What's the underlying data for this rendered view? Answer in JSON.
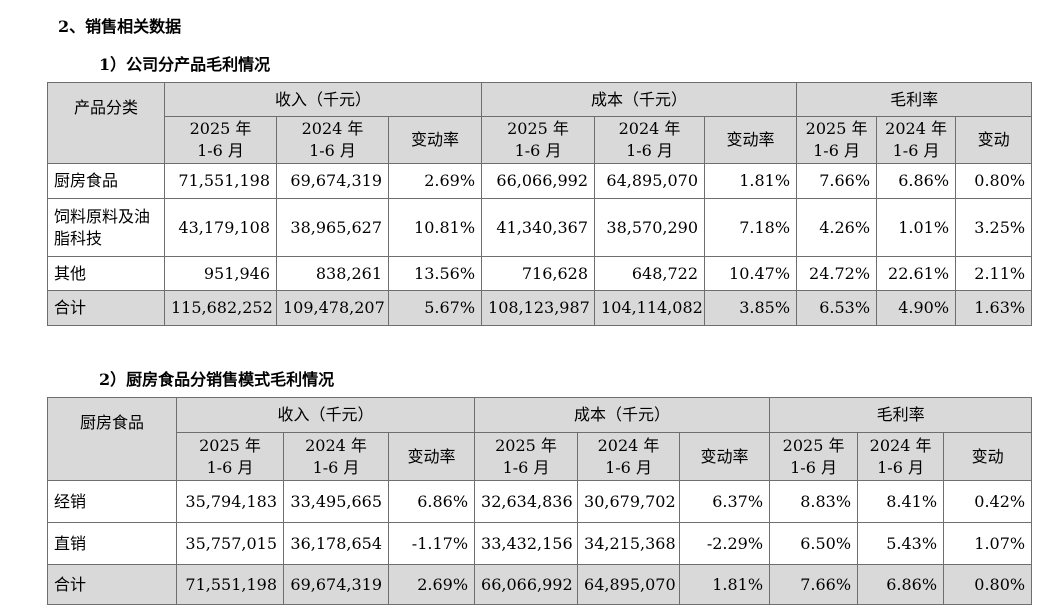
{
  "section_heading": "2、销售相关数据",
  "table1": {
    "caption": "1）公司分产品毛利情况",
    "header": {
      "category": "产品分类",
      "group_revenue": "收入（千元）",
      "group_cost": "成本（千元）",
      "group_margin": "毛利率",
      "y2025": "2025 年",
      "y2024": "2024 年",
      "period": "1-6 月",
      "change_rate": "变动率",
      "change": "变动"
    },
    "rows": [
      {
        "label": "厨房食品",
        "rev25": "71,551,198",
        "rev24": "69,674,319",
        "rev_chg": "2.69%",
        "cost25": "66,066,992",
        "cost24": "64,895,070",
        "cost_chg": "1.81%",
        "gm25": "7.66%",
        "gm24": "6.86%",
        "gm_chg": "0.80%"
      },
      {
        "label": "饲料原料及油脂科技",
        "rev25": "43,179,108",
        "rev24": "38,965,627",
        "rev_chg": "10.81%",
        "cost25": "41,340,367",
        "cost24": "38,570,290",
        "cost_chg": "7.18%",
        "gm25": "4.26%",
        "gm24": "1.01%",
        "gm_chg": "3.25%"
      },
      {
        "label": "其他",
        "rev25": "951,946",
        "rev24": "838,261",
        "rev_chg": "13.56%",
        "cost25": "716,628",
        "cost24": "648,722",
        "cost_chg": "10.47%",
        "gm25": "24.72%",
        "gm24": "22.61%",
        "gm_chg": "2.11%"
      },
      {
        "label": "合计",
        "rev25": "115,682,252",
        "rev24": "109,478,207",
        "rev_chg": "5.67%",
        "cost25": "108,123,987",
        "cost24": "104,114,082",
        "cost_chg": "3.85%",
        "gm25": "6.53%",
        "gm24": "4.90%",
        "gm_chg": "1.63%"
      }
    ]
  },
  "table2": {
    "caption": "2）厨房食品分销售模式毛利情况",
    "header": {
      "category": "厨房食品",
      "group_revenue": "收入（千元）",
      "group_cost": "成本（千元）",
      "group_margin": "毛利率",
      "y2025": "2025 年",
      "y2024": "2024 年",
      "period": "1-6 月",
      "change_rate": "变动率",
      "change": "变动"
    },
    "rows": [
      {
        "label": "经销",
        "rev25": "35,794,183",
        "rev24": "33,495,665",
        "rev_chg": "6.86%",
        "cost25": "32,634,836",
        "cost24": "30,679,702",
        "cost_chg": "6.37%",
        "gm25": "8.83%",
        "gm24": "8.41%",
        "gm_chg": "0.42%"
      },
      {
        "label": "直销",
        "rev25": "35,757,015",
        "rev24": "36,178,654",
        "rev_chg": "-1.17%",
        "cost25": "33,432,156",
        "cost24": "34,215,368",
        "cost_chg": "-2.29%",
        "gm25": "6.50%",
        "gm24": "5.43%",
        "gm_chg": "1.07%"
      },
      {
        "label": "合计",
        "rev25": "71,551,198",
        "rev24": "69,674,319",
        "rev_chg": "2.69%",
        "cost25": "66,066,992",
        "cost24": "64,895,070",
        "cost_chg": "1.81%",
        "gm25": "7.66%",
        "gm24": "6.86%",
        "gm_chg": "0.80%"
      }
    ]
  }
}
